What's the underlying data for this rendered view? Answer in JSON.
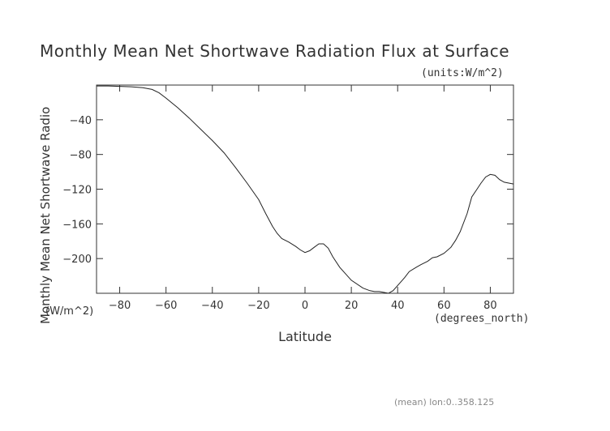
{
  "chart_data": {
    "type": "line",
    "title": "Monthly Mean Net Shortwave Radiation Flux at Surface",
    "units_note": "(units:W/m^2)",
    "xlabel": "Latitude",
    "xunit": "(degrees_north)",
    "ylabel": "Monthly Mean Net Shortwave Radio",
    "yunit": "(W/m^2)",
    "footnote": "(mean) lon:0..358.125",
    "xlim": [
      -90,
      90
    ],
    "ylim": [
      -240,
      0
    ],
    "xticks": [
      -80,
      -60,
      -40,
      -20,
      0,
      20,
      40,
      60,
      80
    ],
    "yticks": [
      -40,
      -80,
      -120,
      -160,
      -200
    ],
    "grid": false,
    "series": [
      {
        "x": [
          -90,
          -85,
          -80,
          -75,
          -70,
          -66,
          -63,
          -60,
          -55,
          -50,
          -45,
          -40,
          -35,
          -30,
          -25,
          -20,
          -17,
          -14,
          -12,
          -10,
          -7,
          -4,
          -2,
          0,
          2,
          4,
          6,
          8,
          10,
          12,
          15,
          20,
          25,
          28,
          30,
          32,
          34,
          36,
          38,
          40,
          43,
          45,
          48,
          50,
          53,
          55,
          57,
          60,
          63,
          65,
          67,
          70,
          72,
          74,
          76,
          78,
          80,
          82,
          84,
          86,
          88,
          90
        ],
        "values": [
          -1,
          -1,
          -1.5,
          -2,
          -3,
          -5,
          -9,
          -15,
          -26,
          -38,
          -51,
          -64,
          -78,
          -95,
          -113,
          -132,
          -148,
          -163,
          -171,
          -177,
          -181,
          -186,
          -190,
          -193,
          -191,
          -187,
          -183,
          -183,
          -188,
          -198,
          -210,
          -225,
          -234,
          -237,
          -238,
          -238,
          -239,
          -240,
          -237,
          -231,
          -222,
          -215,
          -210,
          -207,
          -203,
          -199,
          -198,
          -194,
          -187,
          -179,
          -169,
          -148,
          -129,
          -121,
          -113,
          -106,
          -103,
          -104,
          -109,
          -112,
          -113,
          -114
        ]
      }
    ]
  }
}
